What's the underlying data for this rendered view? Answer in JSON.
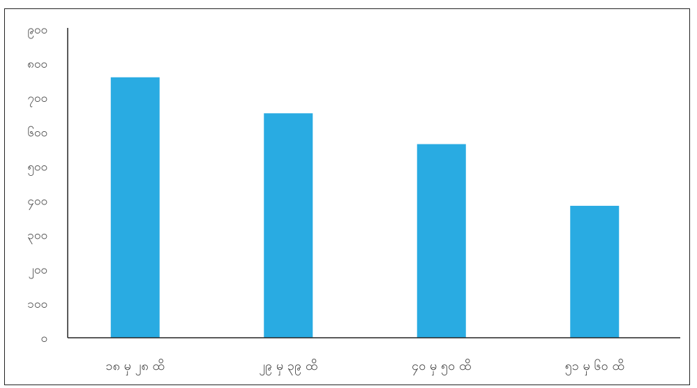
{
  "chart_data": {
    "type": "bar",
    "categories": [
      "၁၈ မှ ၂၈ ထိ",
      "၂၉ မှ ၃၉ ထိ",
      "၄၀ မှ ၅၀ ထိ",
      "၅၁ မှ ၆၀ ထိ"
    ],
    "values": [
      760,
      655,
      565,
      385
    ],
    "ylim": [
      0,
      900
    ],
    "yticks": [
      "၀",
      "၁၀၀",
      "၂၀၀",
      "၃၀၀",
      "၄၀၀",
      "၅၀၀",
      "၆၀၀",
      "၇၀၀",
      "၈၀၀",
      "၉၀၀"
    ],
    "bar_color": "#29abe2",
    "axis_color": "#222222",
    "label_color": "#444444",
    "grid": false,
    "legend": "none"
  }
}
